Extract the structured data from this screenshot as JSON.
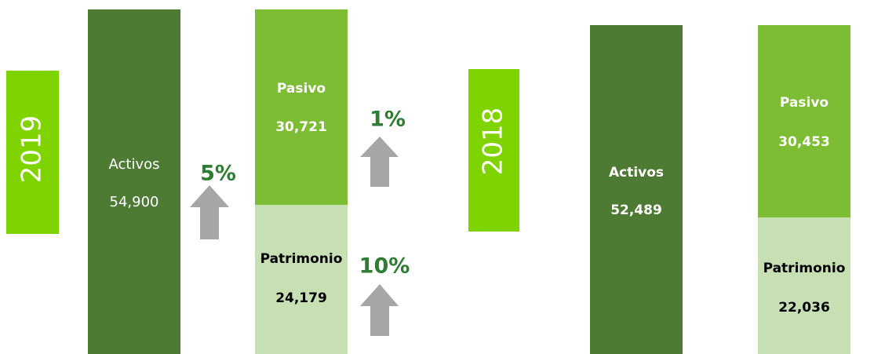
{
  "years": [
    {
      "year": "2019",
      "activos": {
        "label": "Activos",
        "value": "54,900"
      },
      "pasivo": {
        "label": "Pasivo",
        "value": "30,721"
      },
      "patrimonio": {
        "label": "Patrimonio",
        "value": "24,179"
      },
      "growth": {
        "activos": "5%",
        "pasivo": "1%",
        "patrimonio": "10%"
      }
    },
    {
      "year": "2018",
      "activos": {
        "label": "Activos",
        "value": "52,489"
      },
      "pasivo": {
        "label": "Pasivo",
        "value": "30,453"
      },
      "patrimonio": {
        "label": "Patrimonio",
        "value": "22,036"
      }
    }
  ]
}
